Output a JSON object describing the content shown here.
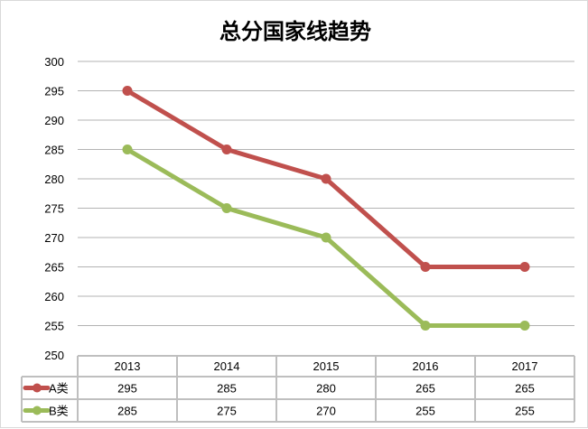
{
  "chart_data": {
    "type": "line",
    "title": "总分国家线趋势",
    "categories": [
      "2013",
      "2014",
      "2015",
      "2016",
      "2017"
    ],
    "series": [
      {
        "name": "A类",
        "values": [
          295,
          285,
          280,
          265,
          265
        ],
        "color": "#C0504D"
      },
      {
        "name": "B类",
        "values": [
          285,
          275,
          270,
          255,
          255
        ],
        "color": "#9BBB59"
      }
    ],
    "ylim": [
      250,
      300
    ],
    "yticks": [
      250,
      255,
      260,
      265,
      270,
      275,
      280,
      285,
      290,
      295,
      300
    ],
    "grid": true,
    "legend": "data-table",
    "data_table": true
  }
}
